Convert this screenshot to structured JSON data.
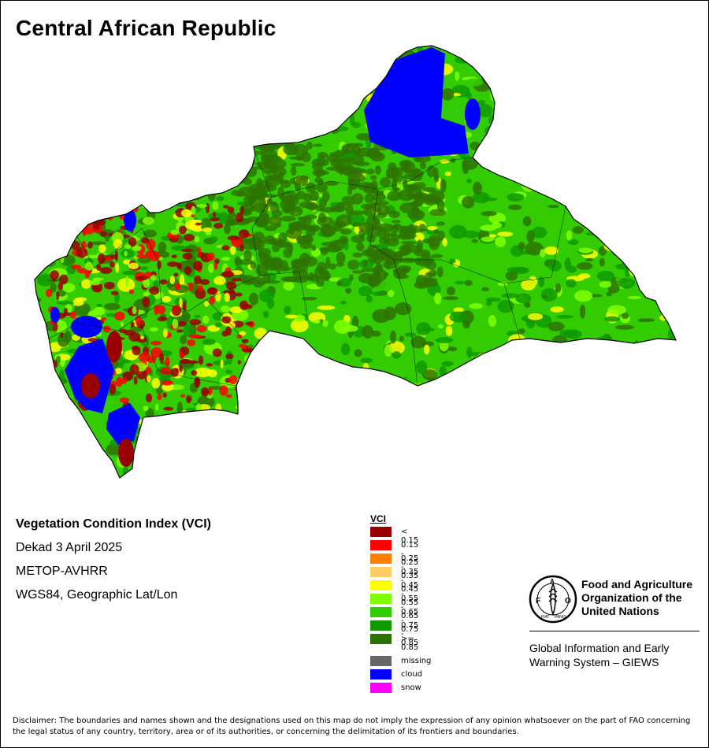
{
  "map": {
    "title": "Central African Republic"
  },
  "info": {
    "index_name": "Vegetation Condition Index (VCI)",
    "period": "Dekad 3 April 2025",
    "sensor": "METOP-AVHRR",
    "projection": "WGS84, Geographic Lat/Lon"
  },
  "legend": {
    "title": "VCI",
    "classes": [
      {
        "label": "< 0.15",
        "color": "#990000"
      },
      {
        "label": "0.15 - 0.25",
        "color": "#ff0000"
      },
      {
        "label": "0.25 - 0.35",
        "color": "#ff8000"
      },
      {
        "label": "0.35 - 0.45",
        "color": "#ffcc66"
      },
      {
        "label": "0.45 - 0.55",
        "color": "#ffff00"
      },
      {
        "label": "0.55 - 0.65",
        "color": "#80ff00"
      },
      {
        "label": "0.65 - 0.75",
        "color": "#33cc00"
      },
      {
        "label": "0.75 - 0.85",
        "color": "#119900"
      },
      {
        "label": ">= 0.85",
        "color": "#2d7300"
      }
    ],
    "extra": [
      {
        "label": "missing",
        "color": "#666666"
      },
      {
        "label": "cloud",
        "color": "#0000ff"
      },
      {
        "label": "snow",
        "color": "#ff00ff"
      }
    ]
  },
  "fao": {
    "logo_letters": "FAO",
    "motto": "FIAT PANIS",
    "name_lines": [
      "Food and Agriculture",
      "Organization of the",
      "United Nations"
    ],
    "giews_lines": [
      "Global Information and Early",
      "Warning System – GIEWS"
    ]
  },
  "disclaimer": "Disclaimer: The boundaries and names shown and the designations used on this map do not imply the expression of any opinion whatsoever on the part of FAO concerning the legal status of any country, territory, area or of its authorities, or concerning the delimitation of its frontiers and boundaries."
}
